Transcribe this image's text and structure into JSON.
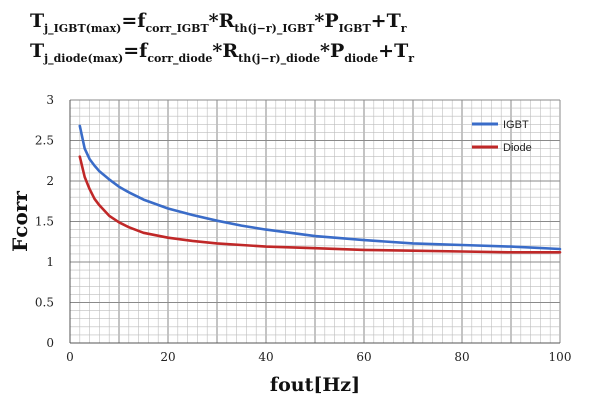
{
  "formulas": [
    {
      "parts": [
        {
          "t": "T",
          "s": false
        },
        {
          "t": "j_IGBT(max)",
          "s": true
        },
        {
          "t": "=f",
          "s": false
        },
        {
          "t": "corr_IGBT",
          "s": true
        },
        {
          "t": "*R",
          "s": false
        },
        {
          "t": "th(j−r)_IGBT",
          "s": true
        },
        {
          "t": "*P",
          "s": false
        },
        {
          "t": "IGBT",
          "s": true
        },
        {
          "t": "+T",
          "s": false
        },
        {
          "t": "r",
          "s": true
        }
      ]
    },
    {
      "parts": [
        {
          "t": "T",
          "s": false
        },
        {
          "t": "j_diode(max)",
          "s": true
        },
        {
          "t": "=f",
          "s": false
        },
        {
          "t": "corr_diode",
          "s": true
        },
        {
          "t": "*R",
          "s": false
        },
        {
          "t": "th(j−r)_diode",
          "s": true
        },
        {
          "t": "*P",
          "s": false
        },
        {
          "t": "diode",
          "s": true
        },
        {
          "t": "+T",
          "s": false
        },
        {
          "t": "r",
          "s": true
        }
      ]
    }
  ],
  "chart_data": {
    "type": "line",
    "title": "",
    "xlabel": "fout[Hz]",
    "ylabel": "Fcorr",
    "xlim": [
      0,
      100
    ],
    "ylim": [
      0,
      3
    ],
    "xticks": [
      0,
      20,
      40,
      60,
      80,
      100
    ],
    "yticks": [
      0,
      0.5,
      1,
      1.5,
      2,
      2.5,
      3
    ],
    "ytick_labels": [
      "0",
      "0.5",
      "1",
      "1.5",
      "2",
      "2.5",
      "3"
    ],
    "grid": true,
    "legend_position": "top-right",
    "series": [
      {
        "name": "IGBT",
        "color": "#3a6cc8",
        "x": [
          2,
          3,
          4,
          5,
          6,
          8,
          10,
          12,
          15,
          20,
          25,
          30,
          35,
          40,
          45,
          50,
          60,
          70,
          80,
          90,
          100
        ],
        "y": [
          2.68,
          2.4,
          2.27,
          2.19,
          2.12,
          2.02,
          1.93,
          1.86,
          1.77,
          1.66,
          1.58,
          1.51,
          1.45,
          1.4,
          1.36,
          1.32,
          1.27,
          1.23,
          1.21,
          1.19,
          1.16
        ]
      },
      {
        "name": "Diode",
        "color": "#c02828",
        "x": [
          2,
          3,
          4,
          5,
          6,
          8,
          10,
          12,
          15,
          20,
          25,
          30,
          35,
          40,
          50,
          60,
          70,
          80,
          90,
          100
        ],
        "y": [
          2.3,
          2.05,
          1.9,
          1.78,
          1.7,
          1.57,
          1.49,
          1.43,
          1.36,
          1.3,
          1.26,
          1.23,
          1.21,
          1.19,
          1.17,
          1.15,
          1.14,
          1.13,
          1.12,
          1.12
        ]
      }
    ]
  }
}
